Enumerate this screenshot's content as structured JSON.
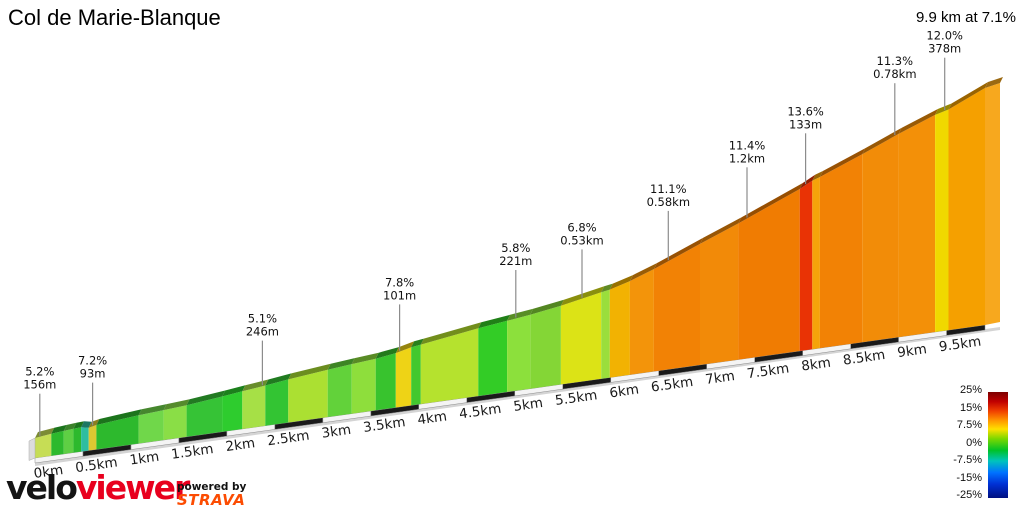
{
  "header": {
    "title": "Col de Marie-Blanque",
    "summary": "9.9 km at 7.1%"
  },
  "branding": {
    "veloviewer_prefix": "velo",
    "veloviewer_suffix": "viewer",
    "powered_by": "powered by",
    "strava": "STRAVA"
  },
  "chart_data": {
    "type": "area",
    "title": "Col de Marie-Blanque",
    "total_distance_km": 9.9,
    "avg_gradient_pct": 7.1,
    "x_ticks": [
      "0km",
      "0.5km",
      "1km",
      "1.5km",
      "2km",
      "2.5km",
      "3km",
      "3.5km",
      "4km",
      "4.5km",
      "5km",
      "5.5km",
      "6km",
      "6.5km",
      "7km",
      "7.5km",
      "8km",
      "8.5km",
      "9km",
      "9.5km"
    ],
    "segments": [
      {
        "from_km": 0.0,
        "to_km": 0.17,
        "gradient_pct": 5.2,
        "color": "#c6dd55"
      },
      {
        "from_km": 0.17,
        "to_km": 0.3,
        "gradient_pct": 4.8,
        "color": "#2db92d"
      },
      {
        "from_km": 0.3,
        "to_km": 0.4,
        "gradient_pct": 4.4,
        "color": "#5ecf44"
      },
      {
        "from_km": 0.4,
        "to_km": 0.48,
        "gradient_pct": 4.0,
        "color": "#2db92d"
      },
      {
        "from_km": 0.48,
        "to_km": 0.56,
        "gradient_pct": -1.0,
        "color": "#2fbda0"
      },
      {
        "from_km": 0.56,
        "to_km": 0.64,
        "gradient_pct": 7.2,
        "color": "#dcc832"
      },
      {
        "from_km": 0.64,
        "to_km": 1.08,
        "gradient_pct": 4.7,
        "color": "#2db92d"
      },
      {
        "from_km": 1.08,
        "to_km": 1.34,
        "gradient_pct": 4.2,
        "color": "#70d74a"
      },
      {
        "from_km": 1.34,
        "to_km": 1.58,
        "gradient_pct": 4.3,
        "color": "#8ade46"
      },
      {
        "from_km": 1.58,
        "to_km": 1.95,
        "gradient_pct": 5.0,
        "color": "#36c336"
      },
      {
        "from_km": 1.95,
        "to_km": 2.16,
        "gradient_pct": 5.2,
        "color": "#2ecc2e"
      },
      {
        "from_km": 2.16,
        "to_km": 2.4,
        "gradient_pct": 5.1,
        "color": "#a6e046"
      },
      {
        "from_km": 2.4,
        "to_km": 2.64,
        "gradient_pct": 5.4,
        "color": "#33c433"
      },
      {
        "from_km": 2.64,
        "to_km": 3.05,
        "gradient_pct": 5.0,
        "color": "#abe032"
      },
      {
        "from_km": 3.05,
        "to_km": 3.3,
        "gradient_pct": 4.8,
        "color": "#62d23a"
      },
      {
        "from_km": 3.3,
        "to_km": 3.55,
        "gradient_pct": 4.6,
        "color": "#8ede3c"
      },
      {
        "from_km": 3.55,
        "to_km": 3.76,
        "gradient_pct": 5.6,
        "color": "#38c32e"
      },
      {
        "from_km": 3.76,
        "to_km": 3.92,
        "gradient_pct": 7.8,
        "color": "#eed316"
      },
      {
        "from_km": 3.92,
        "to_km": 4.02,
        "gradient_pct": 5.6,
        "color": "#42c82e"
      },
      {
        "from_km": 4.02,
        "to_km": 4.62,
        "gradient_pct": 5.8,
        "color": "#b5e22e"
      },
      {
        "from_km": 4.62,
        "to_km": 4.92,
        "gradient_pct": 5.2,
        "color": "#33cc26"
      },
      {
        "from_km": 4.92,
        "to_km": 5.16,
        "gradient_pct": 5.3,
        "color": "#8ce03c"
      },
      {
        "from_km": 5.16,
        "to_km": 5.48,
        "gradient_pct": 6.0,
        "color": "#84d636"
      },
      {
        "from_km": 5.48,
        "to_km": 5.9,
        "gradient_pct": 6.8,
        "color": "#dce316"
      },
      {
        "from_km": 5.9,
        "to_km": 5.99,
        "gradient_pct": 6.2,
        "color": "#9ade3c"
      },
      {
        "from_km": 5.99,
        "to_km": 6.2,
        "gradient_pct": 8.6,
        "color": "#f2b202"
      },
      {
        "from_km": 6.2,
        "to_km": 6.45,
        "gradient_pct": 10.2,
        "color": "#f3940a"
      },
      {
        "from_km": 6.45,
        "to_km": 6.93,
        "gradient_pct": 11.1,
        "color": "#f28205"
      },
      {
        "from_km": 6.93,
        "to_km": 7.33,
        "gradient_pct": 10.9,
        "color": "#f28a08"
      },
      {
        "from_km": 7.33,
        "to_km": 7.97,
        "gradient_pct": 11.4,
        "color": "#f07c02"
      },
      {
        "from_km": 7.97,
        "to_km": 8.1,
        "gradient_pct": 13.6,
        "color": "#e93305"
      },
      {
        "from_km": 8.1,
        "to_km": 8.18,
        "gradient_pct": 9.5,
        "color": "#f5a30a"
      },
      {
        "from_km": 8.18,
        "to_km": 8.62,
        "gradient_pct": 11.0,
        "color": "#f28205"
      },
      {
        "from_km": 8.62,
        "to_km": 9.0,
        "gradient_pct": 11.3,
        "color": "#f28c08"
      },
      {
        "from_km": 9.0,
        "to_km": 9.38,
        "gradient_pct": 10.6,
        "color": "#f39008"
      },
      {
        "from_km": 9.38,
        "to_km": 9.52,
        "gradient_pct": 8.2,
        "color": "#f0d800"
      },
      {
        "from_km": 9.52,
        "to_km": 9.9,
        "gradient_pct": 12.0,
        "color": "#f5a000"
      }
    ],
    "annotations": [
      {
        "km": 0.05,
        "gradient": "5.2%",
        "length": "156m"
      },
      {
        "km": 0.6,
        "gradient": "7.2%",
        "length": "93m"
      },
      {
        "km": 2.37,
        "gradient": "5.1%",
        "length": "246m"
      },
      {
        "km": 3.8,
        "gradient": "7.8%",
        "length": "101m"
      },
      {
        "km": 5.01,
        "gradient": "5.8%",
        "length": "221m"
      },
      {
        "km": 5.7,
        "gradient": "6.8%",
        "length": "0.53km"
      },
      {
        "km": 6.6,
        "gradient": "11.1%",
        "length": "0.58km"
      },
      {
        "km": 7.42,
        "gradient": "11.4%",
        "length": "1.2km"
      },
      {
        "km": 8.03,
        "gradient": "13.6%",
        "length": "133m"
      },
      {
        "km": 8.96,
        "gradient": "11.3%",
        "length": "0.78km"
      },
      {
        "km": 9.48,
        "gradient": "12.0%",
        "length": "378m"
      }
    ],
    "legend": {
      "labels": [
        "25%",
        "15%",
        "7.5%",
        "0%",
        "-7.5%",
        "-15%",
        "-25%"
      ],
      "gradient": [
        {
          "color": "#7d0000",
          "offset": 0
        },
        {
          "color": "#c00000",
          "offset": 9
        },
        {
          "color": "#f04000",
          "offset": 18
        },
        {
          "color": "#ff9800",
          "offset": 27
        },
        {
          "color": "#ffe000",
          "offset": 35
        },
        {
          "color": "#7cd800",
          "offset": 44
        },
        {
          "color": "#00c228",
          "offset": 55
        },
        {
          "color": "#00c4bc",
          "offset": 65
        },
        {
          "color": "#0072ff",
          "offset": 76
        },
        {
          "color": "#0030d4",
          "offset": 87
        },
        {
          "color": "#001080",
          "offset": 100
        }
      ]
    }
  }
}
